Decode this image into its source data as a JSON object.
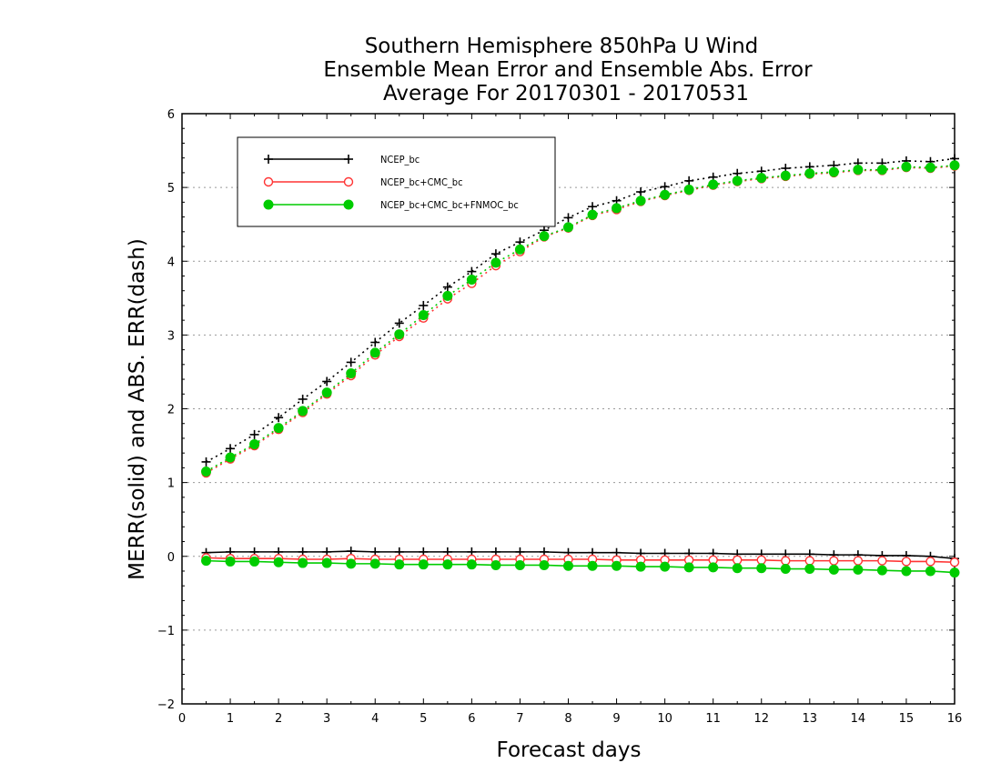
{
  "chart_data": {
    "type": "line",
    "title": [
      "Southern Hemisphere 850hPa U Wind",
      "Ensemble Mean Error and Ensemble Abs. Error",
      "Average For 20170301 - 20170531"
    ],
    "xlabel": "Forecast days",
    "ylabel": "MERR(solid) and ABS. ERR(dash)",
    "xlim": [
      0,
      16
    ],
    "ylim": [
      -2,
      6
    ],
    "x_ticks": [
      "0",
      "1",
      "2",
      "3",
      "4",
      "5",
      "6",
      "7",
      "8",
      "9",
      "10",
      "11",
      "12",
      "13",
      "14",
      "15",
      "16"
    ],
    "y_ticks": [
      "−2",
      "−1",
      "0",
      "1",
      "2",
      "3",
      "4",
      "5",
      "6"
    ],
    "grid": "horizontal dotted",
    "legend_position": "top-left",
    "x": [
      0.5,
      1,
      1.5,
      2,
      2.5,
      3,
      3.5,
      4,
      4.5,
      5,
      5.5,
      6,
      6.5,
      7,
      7.5,
      8,
      8.5,
      9,
      9.5,
      10,
      10.5,
      11,
      11.5,
      12,
      12.5,
      13,
      13.5,
      14,
      14.5,
      15,
      15.5,
      16
    ],
    "series": [
      {
        "name": "NCEP_bc",
        "color": "#000000",
        "marker": "plus",
        "merr": [
          0.05,
          0.06,
          0.06,
          0.06,
          0.06,
          0.06,
          0.07,
          0.06,
          0.06,
          0.06,
          0.06,
          0.06,
          0.06,
          0.06,
          0.06,
          0.05,
          0.05,
          0.05,
          0.04,
          0.04,
          0.04,
          0.04,
          0.03,
          0.03,
          0.03,
          0.03,
          0.02,
          0.02,
          0.01,
          0.01,
          0.0,
          -0.03
        ],
        "abs_err": [
          1.28,
          1.46,
          1.65,
          1.88,
          2.13,
          2.37,
          2.63,
          2.9,
          3.16,
          3.4,
          3.65,
          3.86,
          4.1,
          4.26,
          4.42,
          4.59,
          4.74,
          4.82,
          4.94,
          5.01,
          5.09,
          5.14,
          5.19,
          5.22,
          5.26,
          5.28,
          5.3,
          5.33,
          5.33,
          5.36,
          5.35,
          5.39
        ]
      },
      {
        "name": "NCEP_bc+CMC_bc",
        "color": "#ff3333",
        "marker": "open-circle",
        "merr": [
          -0.02,
          -0.03,
          -0.03,
          -0.03,
          -0.04,
          -0.04,
          -0.03,
          -0.04,
          -0.04,
          -0.04,
          -0.04,
          -0.04,
          -0.04,
          -0.04,
          -0.04,
          -0.04,
          -0.04,
          -0.05,
          -0.05,
          -0.05,
          -0.05,
          -0.05,
          -0.05,
          -0.05,
          -0.06,
          -0.06,
          -0.06,
          -0.06,
          -0.06,
          -0.07,
          -0.07,
          -0.08
        ],
        "abs_err": [
          1.13,
          1.32,
          1.5,
          1.72,
          1.95,
          2.2,
          2.45,
          2.73,
          2.98,
          3.23,
          3.49,
          3.7,
          3.94,
          4.13,
          4.33,
          4.45,
          4.62,
          4.7,
          4.81,
          4.89,
          4.96,
          5.03,
          5.08,
          5.12,
          5.15,
          5.18,
          5.2,
          5.23,
          5.23,
          5.27,
          5.26,
          5.29
        ]
      },
      {
        "name": "NCEP_bc+CMC_bc+FNMOC_bc",
        "color": "#00cc00",
        "marker": "filled-circle",
        "merr": [
          -0.06,
          -0.07,
          -0.07,
          -0.08,
          -0.09,
          -0.09,
          -0.1,
          -0.1,
          -0.11,
          -0.11,
          -0.11,
          -0.11,
          -0.12,
          -0.12,
          -0.12,
          -0.13,
          -0.13,
          -0.13,
          -0.14,
          -0.14,
          -0.15,
          -0.15,
          -0.16,
          -0.16,
          -0.17,
          -0.17,
          -0.18,
          -0.18,
          -0.19,
          -0.2,
          -0.2,
          -0.22
        ],
        "abs_err": [
          1.15,
          1.34,
          1.52,
          1.74,
          1.97,
          2.22,
          2.48,
          2.76,
          3.01,
          3.27,
          3.53,
          3.75,
          3.98,
          4.16,
          4.34,
          4.46,
          4.63,
          4.72,
          4.82,
          4.9,
          4.97,
          5.04,
          5.09,
          5.13,
          5.16,
          5.19,
          5.21,
          5.24,
          5.24,
          5.28,
          5.27,
          5.3
        ]
      }
    ]
  }
}
